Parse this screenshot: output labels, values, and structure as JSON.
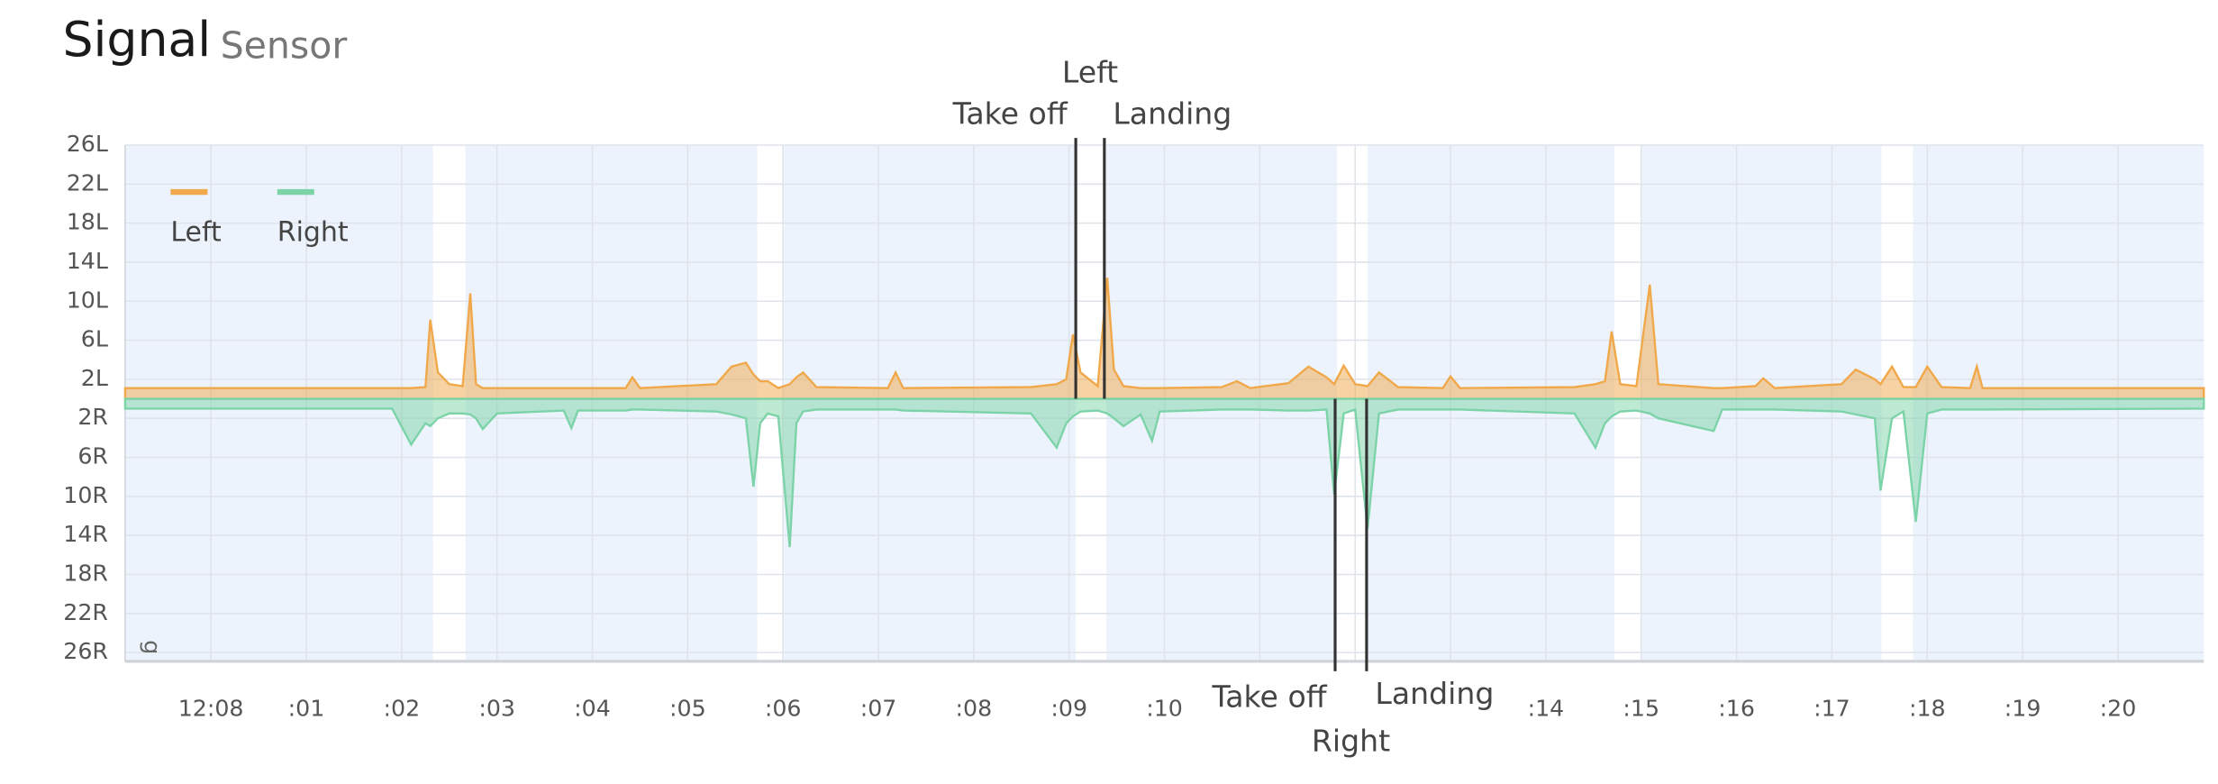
{
  "chart_data": {
    "type": "area",
    "title": "Signal",
    "subtitle": "Sensor",
    "y_unit": "g",
    "xlim": [
      -0.9,
      20.9
    ],
    "ylim": [
      -26.9,
      26
    ],
    "xticks": [
      {
        "value": 0,
        "label": "12:08"
      },
      {
        "value": 1,
        "label": ":01"
      },
      {
        "value": 2,
        "label": ":02"
      },
      {
        "value": 3,
        "label": ":03"
      },
      {
        "value": 4,
        "label": ":04"
      },
      {
        "value": 5,
        "label": ":05"
      },
      {
        "value": 6,
        "label": ":06"
      },
      {
        "value": 7,
        "label": ":07"
      },
      {
        "value": 8,
        "label": ":08"
      },
      {
        "value": 9,
        "label": ":09"
      },
      {
        "value": 10,
        "label": ":10"
      },
      {
        "value": 11,
        "label": null
      },
      {
        "value": 12,
        "label": null
      },
      {
        "value": 13,
        "label": null
      },
      {
        "value": 14,
        "label": ":14"
      },
      {
        "value": 15,
        "label": ":15"
      },
      {
        "value": 16,
        "label": ":16"
      },
      {
        "value": 17,
        "label": ":17"
      },
      {
        "value": 18,
        "label": ":18"
      },
      {
        "value": 19,
        "label": ":19"
      },
      {
        "value": 20,
        "label": ":20"
      }
    ],
    "yticks": [
      {
        "value": 26,
        "label": "26L"
      },
      {
        "value": 22,
        "label": "22L"
      },
      {
        "value": 18,
        "label": "18L"
      },
      {
        "value": 14,
        "label": "14L"
      },
      {
        "value": 10,
        "label": "10L"
      },
      {
        "value": 6,
        "label": "6L"
      },
      {
        "value": 2,
        "label": "2L"
      },
      {
        "value": -2,
        "label": "2R"
      },
      {
        "value": -6,
        "label": "6R"
      },
      {
        "value": -10,
        "label": "10R"
      },
      {
        "value": -14,
        "label": "14R"
      },
      {
        "value": -18,
        "label": "18R"
      },
      {
        "value": -22,
        "label": "22R"
      },
      {
        "value": -26,
        "label": "26R"
      }
    ],
    "grid": true,
    "legend": "top-left",
    "shaded_gaps": [
      [
        2.33,
        2.67
      ],
      [
        5.73,
        6.01
      ],
      [
        9.07,
        9.39
      ],
      [
        11.81,
        12.13
      ],
      [
        14.72,
        15.01
      ],
      [
        17.52,
        17.85
      ]
    ],
    "x": [
      -0.9,
      1.9,
      2.1,
      2.25,
      2.3,
      2.38,
      2.5,
      2.64,
      2.72,
      2.78,
      2.85,
      3.0,
      3.7,
      3.78,
      3.85,
      4.35,
      4.42,
      4.5,
      5.3,
      5.46,
      5.61,
      5.69,
      5.76,
      5.84,
      5.95,
      6.07,
      6.14,
      6.21,
      6.35,
      7.1,
      7.18,
      7.26,
      8.6,
      8.87,
      8.97,
      9.04,
      9.12,
      9.3,
      9.4,
      9.47,
      9.57,
      9.75,
      9.87,
      9.95,
      10.6,
      10.76,
      10.9,
      11.3,
      11.51,
      11.7,
      11.78,
      11.88,
      12.0,
      12.13,
      12.25,
      12.45,
      12.92,
      13.0,
      13.1,
      14.3,
      14.52,
      14.62,
      14.69,
      14.78,
      14.95,
      15.09,
      15.18,
      15.76,
      15.85,
      16.2,
      16.28,
      16.4,
      17.1,
      17.25,
      17.45,
      17.51,
      17.63,
      17.75,
      17.88,
      18.0,
      18.15,
      18.45,
      18.52,
      18.58,
      20.9
    ],
    "series": [
      {
        "name": "Left",
        "color": "#f0a84a",
        "values": [
          1.1,
          1.1,
          1.1,
          1.2,
          8.1,
          2.7,
          1.5,
          1.3,
          10.8,
          1.5,
          1.1,
          1.1,
          1.1,
          1.1,
          1.1,
          1.1,
          2.2,
          1.1,
          1.5,
          3.3,
          3.7,
          2.5,
          1.8,
          1.8,
          1.1,
          1.5,
          2.2,
          2.7,
          1.2,
          1.1,
          2.7,
          1.1,
          1.2,
          1.5,
          2,
          6.6,
          2.7,
          1.3,
          12.4,
          3,
          1.3,
          1.1,
          1.1,
          1.1,
          1.2,
          1.8,
          1.1,
          1.6,
          3.3,
          2.2,
          1.5,
          3.4,
          1.5,
          1.3,
          2.7,
          1.2,
          1.1,
          2.3,
          1.1,
          1.2,
          1.5,
          1.8,
          6.9,
          1.5,
          1.3,
          11.7,
          1.5,
          1.1,
          1.1,
          1.3,
          2.1,
          1.1,
          1.5,
          3,
          2,
          1.5,
          3.3,
          1.2,
          1.2,
          3.3,
          1.2,
          1.1,
          3.3,
          1.1,
          1.1
        ]
      },
      {
        "name": "Right",
        "color": "#7dd3a8",
        "values": [
          -1,
          -1,
          -4.7,
          -2.5,
          -2.8,
          -2,
          -1.5,
          -1.5,
          -1.6,
          -2,
          -3.1,
          -1.5,
          -1.2,
          -3,
          -1.2,
          -1.2,
          -1.1,
          -1.1,
          -1.3,
          -1.6,
          -2,
          -9,
          -2.5,
          -1.5,
          -1.8,
          -15.2,
          -2.5,
          -1.3,
          -1.1,
          -1.1,
          -1.1,
          -1.2,
          -1.5,
          -5,
          -2.5,
          -1.8,
          -1.3,
          -1.2,
          -1.5,
          -2,
          -2.8,
          -1.6,
          -4.3,
          -1.3,
          -1.1,
          -1.1,
          -1.1,
          -1.2,
          -1.2,
          -1.1,
          -9.8,
          -1.5,
          -1.1,
          -13.3,
          -1.5,
          -1.1,
          -1.1,
          -1.1,
          -1.1,
          -1.5,
          -5,
          -2.5,
          -1.8,
          -1.3,
          -1.2,
          -1.5,
          -2,
          -3.3,
          -1.1,
          -1.1,
          -1.1,
          -1.1,
          -1.3,
          -1.6,
          -2,
          -9.4,
          -2,
          -1.3,
          -12.6,
          -1.5,
          -1.1,
          -1.1,
          -1.1,
          -1.1,
          -1
        ]
      }
    ],
    "annotations": [
      {
        "label": "Left",
        "take_off_label": "Take off",
        "landing_label": "Landing",
        "take_off": 9.07,
        "landing": 9.37,
        "side": "top"
      },
      {
        "label": "Right",
        "take_off_label": "Take off",
        "landing_label": "Landing",
        "take_off": 11.79,
        "landing": 12.12,
        "side": "bottom"
      }
    ]
  }
}
